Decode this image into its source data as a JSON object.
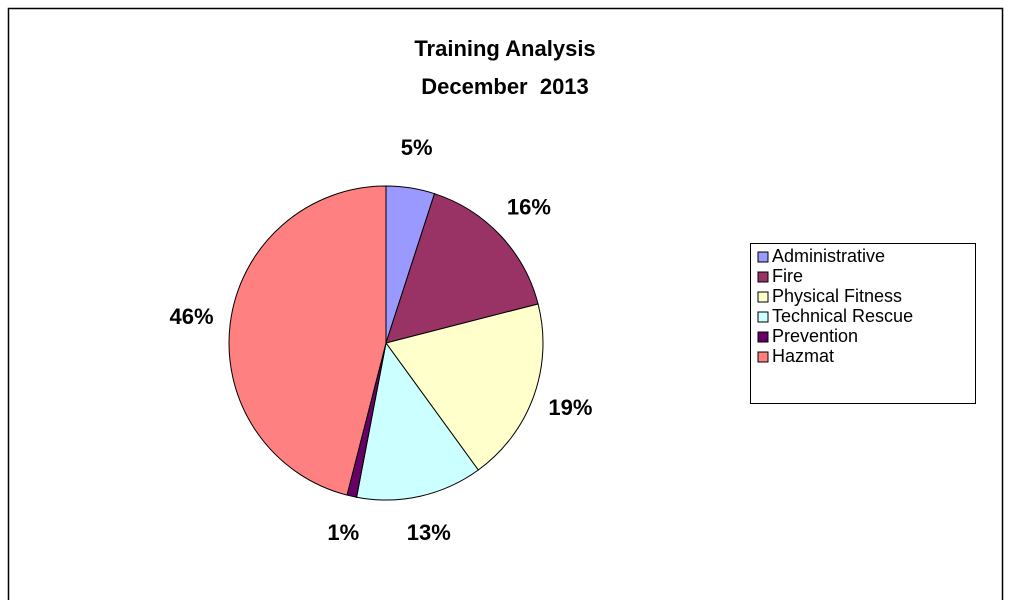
{
  "chart_data": {
    "type": "pie",
    "title": "Training Analysis",
    "subtitle": "December  2013",
    "categories": [
      "Administrative",
      "Fire",
      "Physical Fitness",
      "Technical Rescue",
      "Prevention",
      "Hazmat"
    ],
    "values": [
      5,
      16,
      19,
      13,
      1,
      46
    ],
    "value_labels": [
      "5%",
      "16%",
      "19%",
      "13%",
      "1%",
      "46%"
    ],
    "colors": [
      "#9999ff",
      "#993366",
      "#ffffcc",
      "#ccffff",
      "#660066",
      "#ff8080"
    ],
    "legend": "right"
  }
}
